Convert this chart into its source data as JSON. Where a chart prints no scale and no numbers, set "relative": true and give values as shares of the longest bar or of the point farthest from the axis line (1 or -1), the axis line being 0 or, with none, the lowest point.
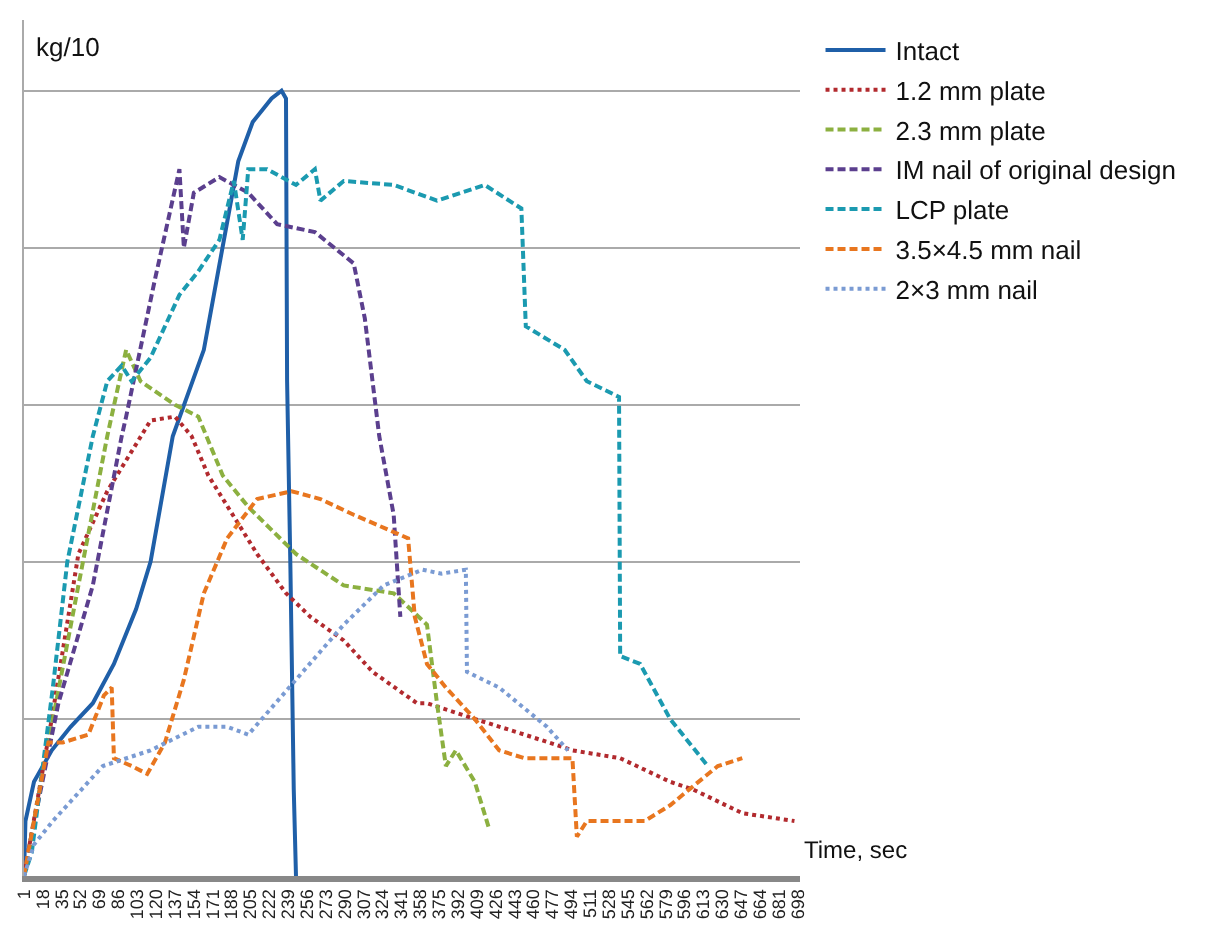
{
  "chart_data": {
    "type": "line",
    "relative": true,
    "xlabel": "Time, sec",
    "ylabel": "kg/10",
    "xlim": [
      1,
      700
    ],
    "xticks": [
      1,
      18,
      35,
      52,
      69,
      86,
      103,
      120,
      137,
      154,
      171,
      188,
      205,
      222,
      239,
      256,
      273,
      290,
      307,
      324,
      341,
      358,
      375,
      392,
      409,
      426,
      443,
      460,
      477,
      494,
      511,
      528,
      545,
      562,
      579,
      596,
      613,
      630,
      647,
      664,
      681,
      698
    ],
    "grid": "y",
    "legend": "right",
    "marker": "none",
    "series": [
      {
        "name": "Intact",
        "color": "#1f5fa8",
        "line_style": "solid",
        "x": [
          1,
          2.3,
          10,
          26,
          43,
          63,
          82,
          102,
          115,
          135,
          163,
          194,
          207,
          224,
          233,
          237,
          238,
          241,
          244,
          246
        ],
        "values": [
          0,
          0.07,
          0.12,
          0.16,
          0.19,
          0.22,
          0.27,
          0.34,
          0.4,
          0.56,
          0.67,
          0.91,
          0.96,
          0.99,
          1,
          0.99,
          0.63,
          0.39,
          0.11,
          0
        ]
      },
      {
        "name": "1.2 mm plate",
        "color": "#b22a2e",
        "line_style": "dotted",
        "x": [
          1,
          26,
          50,
          76,
          115,
          137,
          152,
          167,
          211,
          237,
          259,
          289,
          315,
          355,
          364,
          407,
          452,
          495,
          538,
          583,
          604,
          648,
          695
        ],
        "values": [
          0,
          0.2,
          0.41,
          0.49,
          0.58,
          0.585,
          0.56,
          0.51,
          0.41,
          0.36,
          0.33,
          0.3,
          0.26,
          0.22,
          0.22,
          0.2,
          0.18,
          0.16,
          0.15,
          0.12,
          0.11,
          0.08,
          0.07
        ]
      },
      {
        "name": "2.3 mm plate",
        "color": "#8cb040",
        "line_style": "dashed",
        "x": [
          1,
          23,
          50,
          76,
          93,
          106,
          137,
          158,
          180,
          203,
          246,
          289,
          334,
          364,
          373,
          381,
          390,
          407,
          420
        ],
        "values": [
          0,
          0.17,
          0.37,
          0.56,
          0.67,
          0.63,
          0.6,
          0.585,
          0.51,
          0.47,
          0.41,
          0.37,
          0.36,
          0.32,
          0.22,
          0.14,
          0.16,
          0.12,
          0.06
        ]
      },
      {
        "name": "IM nail of original design",
        "color": "#5b3f8e",
        "line_style": "dashed",
        "x": [
          1,
          6,
          32,
          63,
          89,
          93,
          119,
          141,
          145,
          154,
          177,
          203,
          229,
          263,
          298,
          308,
          321,
          334,
          340
        ],
        "values": [
          0,
          0.04,
          0.22,
          0.37,
          0.56,
          0.585,
          0.76,
          0.9,
          0.8,
          0.87,
          0.89,
          0.87,
          0.83,
          0.82,
          0.78,
          0.71,
          0.56,
          0.46,
          0.33
        ]
      },
      {
        "name": "LCP plate",
        "color": "#1b9ab0",
        "line_style": "dashed",
        "x": [
          1,
          8,
          27,
          40,
          63,
          76,
          89,
          98,
          115,
          141,
          158,
          177,
          190,
          198,
          203,
          220,
          246,
          263,
          268,
          289,
          334,
          373,
          416,
          449,
          453,
          488,
          508,
          537,
          538,
          556,
          583,
          617
        ],
        "values": [
          0,
          0.03,
          0.24,
          0.4,
          0.56,
          0.63,
          0.65,
          0.63,
          0.66,
          0.74,
          0.77,
          0.81,
          0.885,
          0.81,
          0.9,
          0.9,
          0.88,
          0.9,
          0.86,
          0.885,
          0.88,
          0.86,
          0.88,
          0.85,
          0.7,
          0.67,
          0.63,
          0.61,
          0.28,
          0.27,
          0.2,
          0.14
        ]
      },
      {
        "name": "3.5×4.5 mm nail",
        "color": "#e8761f",
        "line_style": "dashed",
        "x": [
          1,
          23,
          36,
          59,
          73,
          80,
          82,
          98,
          112,
          128,
          145,
          163,
          184,
          211,
          242,
          268,
          298,
          347,
          353,
          364,
          381,
          407,
          429,
          452,
          495,
          499,
          508,
          560,
          583,
          600,
          626,
          648
        ],
        "values": [
          0,
          0.17,
          0.17,
          0.18,
          0.23,
          0.24,
          0.15,
          0.14,
          0.13,
          0.17,
          0.25,
          0.36,
          0.43,
          0.48,
          0.49,
          0.48,
          0.46,
          0.43,
          0.33,
          0.27,
          0.24,
          0.2,
          0.16,
          0.15,
          0.15,
          0.05,
          0.07,
          0.07,
          0.09,
          0.11,
          0.14,
          0.15
        ]
      },
      {
        "name": "2×3 mm nail",
        "color": "#7a9bd3",
        "line_style": "dotted",
        "x": [
          1,
          10,
          27,
          72,
          115,
          158,
          184,
          203,
          246,
          289,
          325,
          360,
          377,
          399,
          400,
          429,
          472,
          491
        ],
        "values": [
          0,
          0.04,
          0.07,
          0.14,
          0.16,
          0.19,
          0.19,
          0.18,
          0.25,
          0.32,
          0.37,
          0.39,
          0.385,
          0.39,
          0.26,
          0.24,
          0.19,
          0.16
        ]
      }
    ]
  }
}
